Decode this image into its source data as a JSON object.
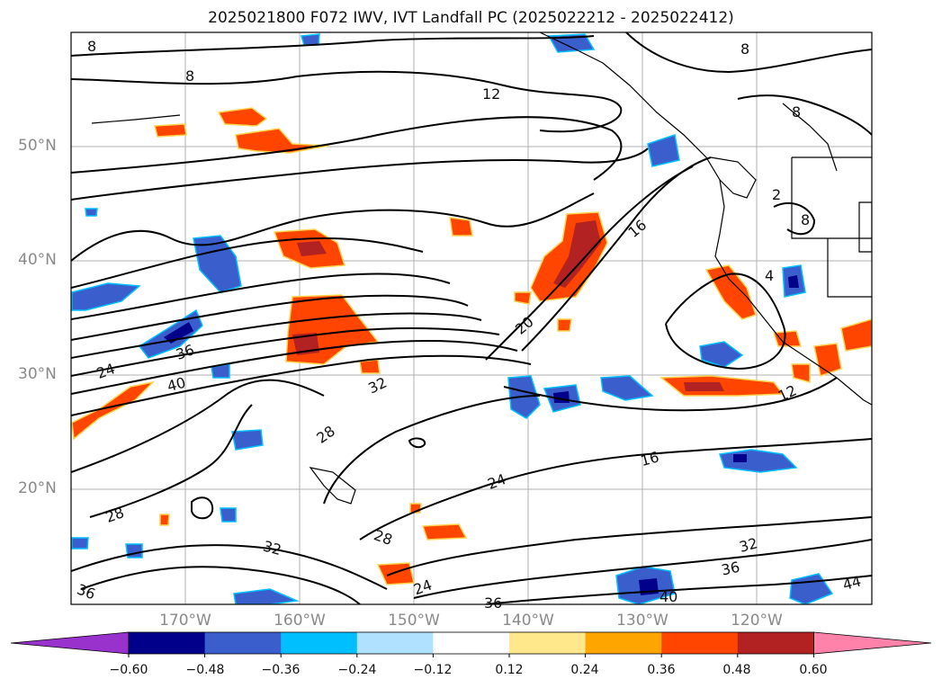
{
  "title": "2025021800 F072 IWV, IVT Landfall PC (2025022212 - 2025022412)",
  "lat_labels": [
    "50°N",
    "40°N",
    "30°N",
    "20°N"
  ],
  "lon_labels": [
    "170°W",
    "160°W",
    "150°W",
    "140°W",
    "130°W",
    "120°W"
  ],
  "contour_labels": [
    "8",
    "8",
    "12",
    "8",
    "8",
    "16",
    "2",
    "8",
    "4",
    "20",
    "12",
    "24",
    "36",
    "40",
    "32",
    "28",
    "16",
    "24",
    "28",
    "28",
    "32",
    "32",
    "36",
    "40",
    "44",
    "36",
    "24",
    "36"
  ],
  "colorbar": {
    "colors": [
      "#9932cc",
      "#00008b",
      "#3a5fcd",
      "#00bfff",
      "#b0e2ff",
      "#ffffff",
      "#fee88b",
      "#ffa500",
      "#ff4500",
      "#b22222",
      "#ff82ab"
    ],
    "ticks": [
      "−0.60",
      "−0.48",
      "−0.36",
      "−0.24",
      "−0.12",
      "0.12",
      "0.24",
      "0.36",
      "0.48",
      "0.60"
    ]
  },
  "colors": {
    "land_line": "#000000",
    "grid": "#b0b0b0",
    "positive_pc": "#ff4500",
    "negative_pc": "#3a5fcd"
  }
}
